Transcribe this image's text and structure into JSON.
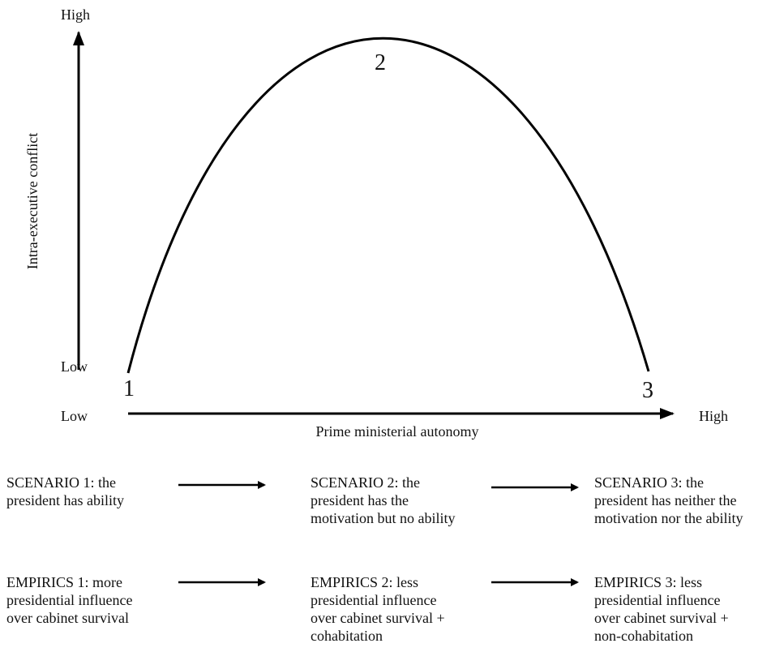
{
  "y_axis": {
    "label": "Intra-executive conflict",
    "high": "High",
    "low": "Low"
  },
  "x_axis": {
    "label": "Prime ministerial autonomy",
    "low": "Low",
    "high": "High"
  },
  "points": [
    "1",
    "2",
    "3"
  ],
  "scenarios": [
    [
      "SCENARIO 1: the",
      "president has ability"
    ],
    [
      "SCENARIO 2: the",
      "president has the",
      "motivation but no ability"
    ],
    [
      "SCENARIO 3: the",
      "president has neither the",
      "motivation nor the ability"
    ]
  ],
  "empirics": [
    [
      "EMPIRICS 1: more",
      "presidential influence",
      "over cabinet survival"
    ],
    [
      "EMPIRICS 2: less",
      "presidential influence",
      "over cabinet survival +",
      "cohabitation"
    ],
    [
      "EMPIRICS 3: less",
      "presidential influence",
      "over cabinet survival +",
      "non-cohabitation"
    ]
  ]
}
